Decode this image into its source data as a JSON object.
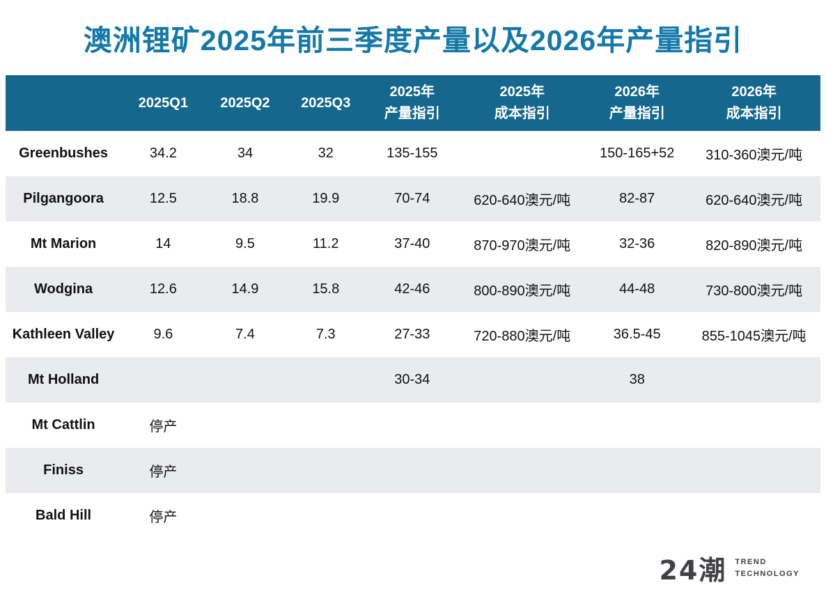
{
  "page": {
    "background": "#ffffff",
    "accent_title_color": "#1579a8",
    "header_bg_color": "#15678e",
    "row_alt_color": "#e9ebee"
  },
  "chart_data": {
    "type": "table",
    "title": "澳洲锂矿2025年前三季度产量以及2026年产量指引",
    "legend_position": "none",
    "grid": false,
    "columns": [
      {
        "line1": "",
        "line2": ""
      },
      {
        "line1": "2025Q1",
        "line2": ""
      },
      {
        "line1": "2025Q2",
        "line2": ""
      },
      {
        "line1": "2025Q3",
        "line2": ""
      },
      {
        "line1": "2025年",
        "line2": "产量指引"
      },
      {
        "line1": "2025年",
        "line2": "成本指引"
      },
      {
        "line1": "2026年",
        "line2": "产量指引"
      },
      {
        "line1": "2026年",
        "line2": "成本指引"
      }
    ],
    "rows": [
      {
        "label": "Greenbushes",
        "cells": [
          "34.2",
          "34",
          "32",
          "135-155",
          "",
          "150-165+52",
          "310-360澳元/吨"
        ]
      },
      {
        "label": "Pilgangoora",
        "cells": [
          "12.5",
          "18.8",
          "19.9",
          "70-74",
          "620-640澳元/吨",
          "82-87",
          "620-640澳元/吨"
        ]
      },
      {
        "label": "Mt Marion",
        "cells": [
          "14",
          "9.5",
          "11.2",
          "37-40",
          "870-970澳元/吨",
          "32-36",
          "820-890澳元/吨"
        ]
      },
      {
        "label": "Wodgina",
        "cells": [
          "12.6",
          "14.9",
          "15.8",
          "42-46",
          "800-890澳元/吨",
          "44-48",
          "730-800澳元/吨"
        ]
      },
      {
        "label": "Kathleen Valley",
        "cells": [
          "9.6",
          "7.4",
          "7.3",
          "27-33",
          "720-880澳元/吨",
          "36.5-45",
          "855-1045澳元/吨"
        ]
      },
      {
        "label": "Mt Holland",
        "cells": [
          "",
          "",
          "",
          "30-34",
          "",
          "38",
          ""
        ]
      },
      {
        "label": "Mt Cattlin",
        "cells": [
          "停产",
          "",
          "",
          "",
          "",
          "",
          ""
        ]
      },
      {
        "label": "Finiss",
        "cells": [
          "停产",
          "",
          "",
          "",
          "",
          "",
          ""
        ]
      },
      {
        "label": "Bald Hill",
        "cells": [
          "停产",
          "",
          "",
          "",
          "",
          "",
          ""
        ]
      }
    ]
  },
  "footer": {
    "brand": "24潮",
    "tagline_line1": "TREND",
    "tagline_line2": "TECHNOLOGY"
  }
}
